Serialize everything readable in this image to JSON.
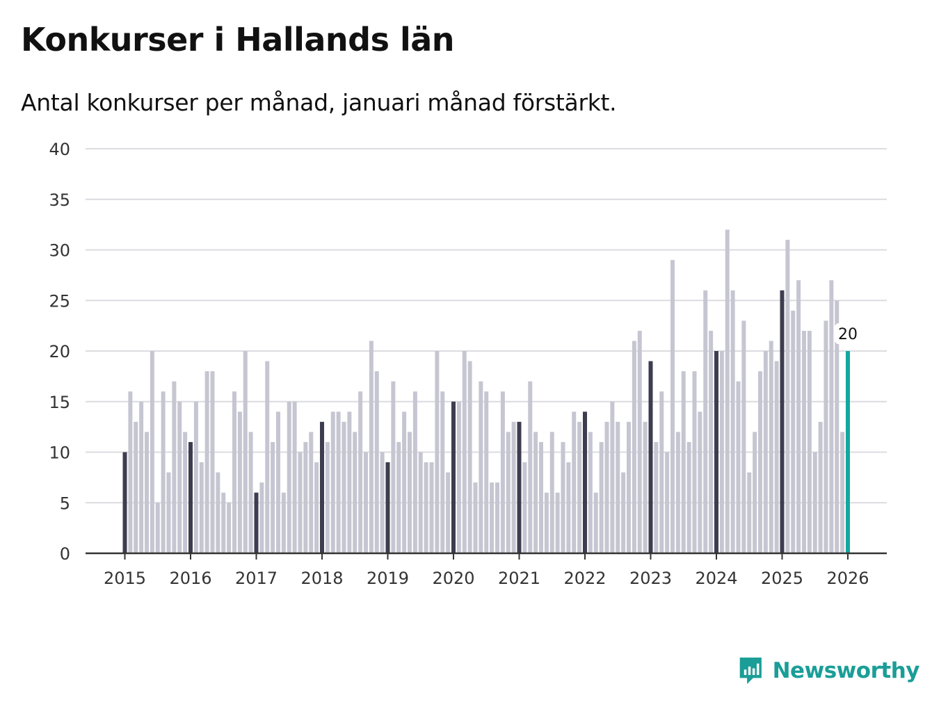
{
  "title": "Konkurser i Hallands län",
  "subtitle": "Antal konkurser per månad, januari månad förstärkt.",
  "brand": "Newsworthy",
  "colors": {
    "bar": "#c6c6d2",
    "bar_january": "#3d3d4f",
    "bar_latest": "#13a89e",
    "grid": "#dcdce0",
    "axis": "#333333",
    "brand": "#1a9e97"
  },
  "chart_data": {
    "type": "bar",
    "start": "2015-01",
    "ylim": [
      0,
      40
    ],
    "yticks": [
      0,
      5,
      10,
      15,
      20,
      25,
      30,
      35,
      40
    ],
    "xticks": [
      "2015",
      "2016",
      "2017",
      "2018",
      "2019",
      "2020",
      "2021",
      "2022",
      "2023",
      "2024",
      "2025",
      "2026"
    ],
    "grid": true,
    "highlight": "january",
    "latest_label": "20",
    "values": [
      10,
      16,
      13,
      15,
      12,
      20,
      5,
      16,
      8,
      17,
      15,
      12,
      11,
      15,
      9,
      18,
      18,
      8,
      6,
      5,
      16,
      14,
      20,
      12,
      6,
      7,
      19,
      11,
      14,
      6,
      15,
      15,
      10,
      11,
      12,
      9,
      13,
      11,
      14,
      14,
      13,
      14,
      12,
      16,
      10,
      21,
      18,
      10,
      9,
      17,
      11,
      14,
      12,
      16,
      10,
      9,
      9,
      20,
      16,
      8,
      15,
      15,
      20,
      19,
      7,
      17,
      16,
      7,
      7,
      16,
      12,
      13,
      13,
      9,
      17,
      12,
      11,
      6,
      12,
      6,
      11,
      9,
      14,
      13,
      14,
      12,
      6,
      11,
      13,
      15,
      13,
      8,
      13,
      21,
      22,
      13,
      19,
      11,
      16,
      10,
      29,
      12,
      18,
      11,
      18,
      14,
      26,
      22,
      20,
      20,
      32,
      26,
      17,
      23,
      8,
      12,
      18,
      20,
      21,
      19,
      26,
      31,
      24,
      27,
      22,
      22,
      10,
      13,
      23,
      27,
      25,
      12,
      20
    ]
  }
}
